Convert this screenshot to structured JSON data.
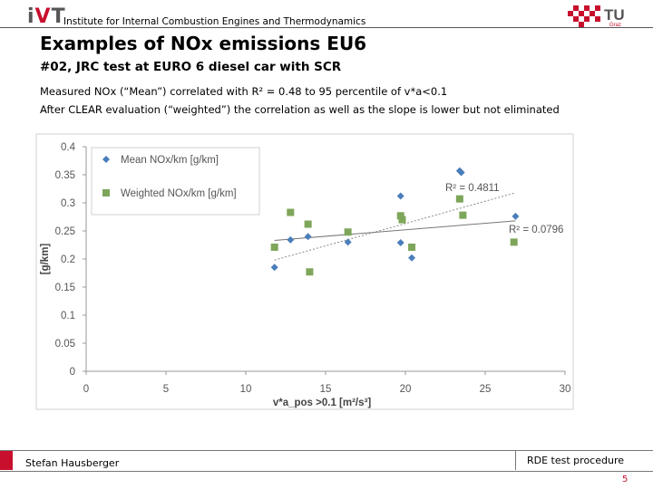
{
  "header": {
    "institute": "Institute for Internal Combustion Engines and Thermodynamics",
    "logo_left": {
      "i": "i",
      "v": "V",
      "t": "T"
    },
    "logo_right": {
      "text": "TU",
      "sub": "Graz"
    },
    "brand_color": "#c8102e"
  },
  "slide": {
    "title": "Examples of NOx emissions EU6",
    "subtitle": "#02, JRC test at EURO 6 diesel car with SCR",
    "lines": [
      "Measured NOx (“Mean”) correlated with R² = 0.48 to 95 percentile of v*a<0.1",
      "After CLEAR evaluation (“weighted”) the correlation as well as the slope is lower but not eliminated"
    ]
  },
  "chart_data": {
    "type": "scatter",
    "xlabel": "v*a_pos >0.1 [m²/s³]",
    "ylabel": "[g/km]",
    "xlim": [
      0,
      30
    ],
    "ylim": [
      0,
      0.4
    ],
    "x_ticks": [
      "0",
      "5",
      "10",
      "15",
      "20",
      "25",
      "30"
    ],
    "y_ticks": [
      "0",
      "0.05",
      "0.1",
      "0.15",
      "0.2",
      "0.25",
      "0.3",
      "0.35",
      "0.4"
    ],
    "grid": false,
    "legend_position": "top-left",
    "series": [
      {
        "name": "Mean NOx/km [g/km]",
        "marker": "diamond",
        "color": "#4a7ebb",
        "points": [
          {
            "x": 11.8,
            "y": 0.185
          },
          {
            "x": 12.8,
            "y": 0.234
          },
          {
            "x": 13.9,
            "y": 0.24
          },
          {
            "x": 16.4,
            "y": 0.23
          },
          {
            "x": 19.7,
            "y": 0.312
          },
          {
            "x": 19.7,
            "y": 0.229
          },
          {
            "x": 20.4,
            "y": 0.202
          },
          {
            "x": 23.4,
            "y": 0.357
          },
          {
            "x": 23.5,
            "y": 0.354
          },
          {
            "x": 26.9,
            "y": 0.276
          }
        ],
        "trendline_r2": "R² = 0.4811"
      },
      {
        "name": "Weighted NOx/km [g/km]",
        "marker": "square",
        "color": "#7ea65a",
        "points": [
          {
            "x": 11.8,
            "y": 0.221
          },
          {
            "x": 12.8,
            "y": 0.283
          },
          {
            "x": 13.9,
            "y": 0.262
          },
          {
            "x": 14.0,
            "y": 0.177
          },
          {
            "x": 16.4,
            "y": 0.248
          },
          {
            "x": 19.7,
            "y": 0.277
          },
          {
            "x": 19.8,
            "y": 0.27
          },
          {
            "x": 20.4,
            "y": 0.221
          },
          {
            "x": 23.4,
            "y": 0.307
          },
          {
            "x": 23.6,
            "y": 0.278
          },
          {
            "x": 26.8,
            "y": 0.23
          }
        ],
        "trendline_r2": "R² = 0.0796"
      }
    ],
    "trendlines": [
      {
        "series": "Mean NOx/km [g/km]",
        "from": {
          "x": 11.8,
          "y": 0.198
        },
        "to": {
          "x": 26.9,
          "y": 0.318
        },
        "style": "dotted",
        "color": "#8a8a8a"
      },
      {
        "series": "Weighted NOx/km [g/km]",
        "from": {
          "x": 11.8,
          "y": 0.233
        },
        "to": {
          "x": 26.9,
          "y": 0.268
        },
        "style": "solid",
        "color": "#777777"
      }
    ]
  },
  "footer": {
    "author": "Stefan Hausberger",
    "topic": "RDE test procedure",
    "page": "5"
  }
}
